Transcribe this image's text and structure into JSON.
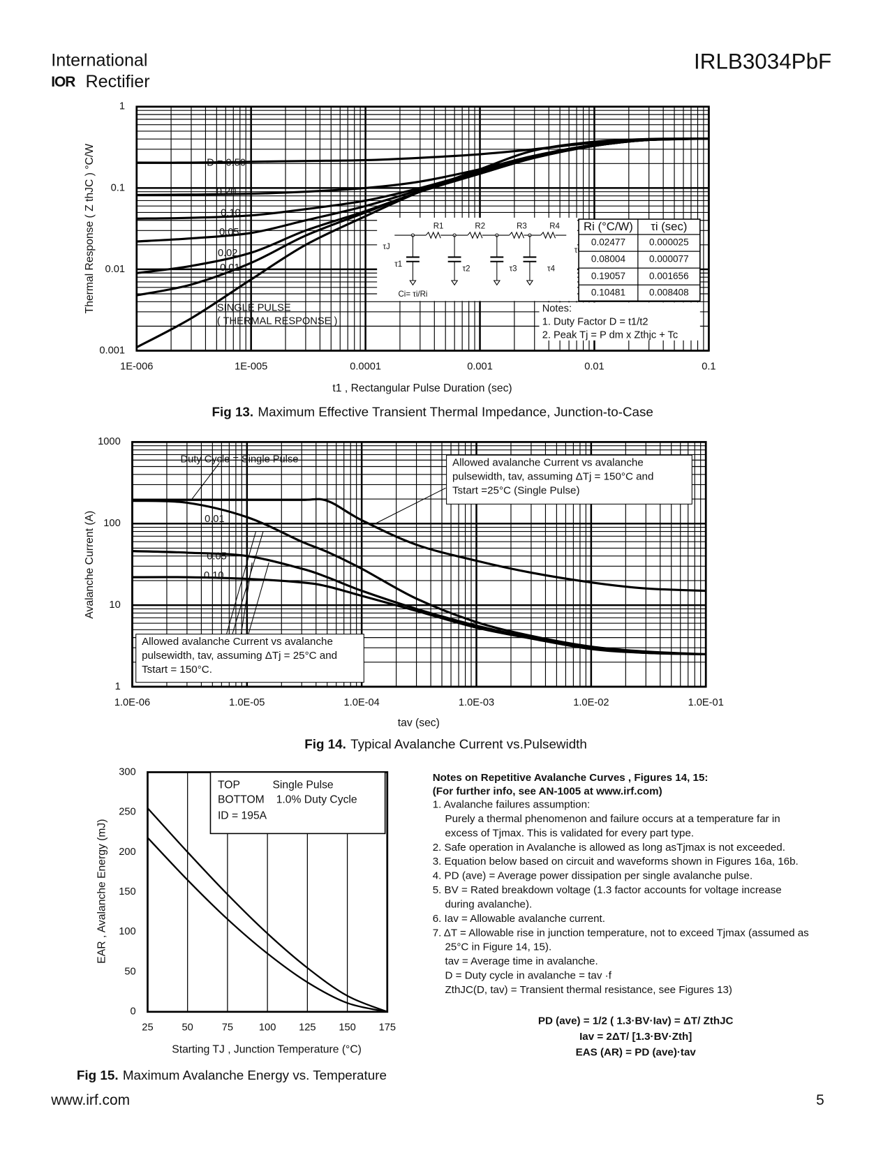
{
  "header": {
    "logo_top": "International",
    "logo_mark": "IOR",
    "logo_bottom": "Rectifier",
    "part": "IRLB3034PbF"
  },
  "chart_data": [
    {
      "type": "line",
      "caption_label": "Fig 13.",
      "caption": "Maximum Effective Transient Thermal Impedance, Junction-to-Case",
      "xlabel": "t1 , Rectangular Pulse Duration (sec)",
      "ylabel": "Thermal Response ( Z thJC ) °C/W",
      "xscale": "log",
      "yscale": "log",
      "grid": true,
      "xlim": [
        1e-06,
        0.1
      ],
      "ylim": [
        0.001,
        1
      ],
      "xticks": [
        {
          "value": 1e-06,
          "label": "1E-006"
        },
        {
          "value": 1e-05,
          "label": "1E-005"
        },
        {
          "value": 0.0001,
          "label": "0.0001"
        },
        {
          "value": 0.001,
          "label": "0.001"
        },
        {
          "value": 0.01,
          "label": "0.01"
        },
        {
          "value": 0.1,
          "label": "0.1"
        }
      ],
      "yticks": [
        0.001,
        0.01,
        0.1,
        1
      ],
      "x": [
        1e-06,
        3e-06,
        1e-05,
        3e-05,
        0.0001,
        0.0003,
        0.001,
        0.003,
        0.01,
        0.03,
        0.1
      ],
      "series": [
        {
          "name": "D = 0.50",
          "color": "#000000",
          "values": [
            0.205,
            0.205,
            0.21,
            0.215,
            0.22,
            0.235,
            0.26,
            0.3,
            0.36,
            0.39,
            0.405
          ]
        },
        {
          "name": "0.20",
          "color": "#000000",
          "values": [
            0.082,
            0.083,
            0.085,
            0.09,
            0.1,
            0.12,
            0.17,
            0.25,
            0.34,
            0.39,
            0.405
          ]
        },
        {
          "name": "0.10",
          "color": "#000000",
          "values": [
            0.042,
            0.043,
            0.046,
            0.055,
            0.07,
            0.1,
            0.16,
            0.24,
            0.34,
            0.39,
            0.405
          ]
        },
        {
          "name": "0.05",
          "color": "#000000",
          "values": [
            0.022,
            0.024,
            0.028,
            0.04,
            0.06,
            0.095,
            0.155,
            0.24,
            0.33,
            0.39,
            0.405
          ]
        },
        {
          "name": "0.02",
          "color": "#000000",
          "values": [
            0.009,
            0.011,
            0.016,
            0.03,
            0.052,
            0.09,
            0.15,
            0.235,
            0.33,
            0.39,
            0.405
          ]
        },
        {
          "name": "0.01",
          "color": "#000000",
          "values": [
            0.0048,
            0.0065,
            0.012,
            0.026,
            0.05,
            0.09,
            0.15,
            0.235,
            0.33,
            0.39,
            0.405
          ]
        },
        {
          "name": "SINGLE PULSE",
          "color": "#000000",
          "values": [
            0.0011,
            0.0025,
            0.0075,
            0.02,
            0.045,
            0.09,
            0.17,
            0.29,
            0.37,
            0.4,
            0.405
          ]
        }
      ],
      "annotations": [
        "( THERMAL RESPONSE )"
      ],
      "circuit_labels": [
        "R1",
        "R2",
        "R3",
        "R4",
        "τJ",
        "τC",
        "τ1",
        "τ2",
        "τ3",
        "τ4",
        "Ci= τi/Ri"
      ],
      "table": {
        "columns": [
          "Ri (°C/W)",
          "τi (sec)"
        ],
        "rows": [
          [
            "0.02477",
            "0.000025"
          ],
          [
            "0.08004",
            "0.000077"
          ],
          [
            "0.19057",
            "0.001656"
          ],
          [
            "0.10481",
            "0.008408"
          ]
        ]
      },
      "notes": [
        "Notes:",
        "1. Duty Factor D = t1/t2",
        "2. Peak Tj = P dm x Zthjc + Tc"
      ]
    },
    {
      "type": "line",
      "caption_label": "Fig 14.",
      "caption": "Typical Avalanche Current vs.Pulsewidth",
      "xlabel": "tav (sec)",
      "ylabel": "Avalanche Current (A)",
      "xscale": "log",
      "yscale": "log",
      "grid": true,
      "xlim": [
        1e-06,
        0.1
      ],
      "ylim": [
        1,
        1000
      ],
      "xticks": [
        {
          "value": 1e-06,
          "label": "1.0E-06"
        },
        {
          "value": 1e-05,
          "label": "1.0E-05"
        },
        {
          "value": 0.0001,
          "label": "1.0E-04"
        },
        {
          "value": 0.001,
          "label": "1.0E-03"
        },
        {
          "value": 0.01,
          "label": "1.0E-02"
        },
        {
          "value": 0.1,
          "label": "1.0E-01"
        }
      ],
      "yticks": [
        1,
        10,
        100,
        1000
      ],
      "x": [
        1e-06,
        3e-06,
        1e-05,
        3e-05,
        5e-05,
        0.0001,
        0.0003,
        0.001,
        0.003,
        0.01,
        0.03,
        0.1
      ],
      "series": [
        {
          "name": "Duty Cycle = Single Pulse",
          "color": "#000000",
          "values": [
            195,
            195,
            195,
            195,
            190,
            110,
            55,
            35,
            25,
            19,
            16,
            15
          ]
        },
        {
          "name": "0.01",
          "color": "#000000",
          "values": [
            190,
            180,
            120,
            60,
            45,
            28,
            12,
            6.2,
            4.2,
            3.1,
            2.7,
            2.5
          ]
        },
        {
          "name": "0.05",
          "color": "#000000",
          "values": [
            46,
            44,
            40,
            28,
            22,
            15,
            9,
            5.6,
            4,
            3,
            2.6,
            2.5
          ]
        },
        {
          "name": "0.10",
          "color": "#000000",
          "values": [
            22,
            22,
            21,
            19,
            17,
            13,
            8.5,
            5.3,
            3.9,
            2.9,
            2.6,
            2.5
          ]
        }
      ],
      "annotations": [
        [
          "Allowed avalanche Current vs avalanche",
          "pulsewidth, tav, assuming ΔTj = 150°C and",
          "Tstart =25°C (Single Pulse)"
        ],
        [
          "Allowed avalanche Current vs avalanche",
          "pulsewidth, tav, assuming ΔTj = 25°C and",
          "Tstart = 150°C."
        ]
      ]
    },
    {
      "type": "line",
      "caption_label": "Fig 15.",
      "caption": "Maximum Avalanche Energy vs. Temperature",
      "xlabel": "Starting TJ , Junction Temperature (°C)",
      "ylabel": "EAR , Avalanche Energy (mJ)",
      "xscale": "linear",
      "yscale": "linear",
      "grid": "x",
      "xlim": [
        25,
        175
      ],
      "ylim": [
        0,
        300
      ],
      "xticks": [
        25,
        50,
        75,
        100,
        125,
        150,
        175
      ],
      "yticks": [
        0,
        50,
        100,
        150,
        200,
        250,
        300
      ],
      "x": [
        25,
        50,
        75,
        100,
        125,
        150,
        175
      ],
      "series": [
        {
          "name": "Single Pulse",
          "color": "#000000",
          "values": [
            255,
            200,
            147,
            98,
            55,
            20,
            0
          ]
        },
        {
          "name": "1.0% Duty Cycle",
          "color": "#000000",
          "values": [
            218,
            165,
            116,
            73,
            37,
            11,
            0
          ]
        }
      ],
      "legend": {
        "top": "TOP",
        "bottom": "BOTTOM",
        "note": "ID = 195A"
      }
    }
  ],
  "notes": {
    "title": [
      "Notes on Repetitive Avalanche Curves , Figures 14, 15:",
      "(For further info, see AN-1005 at www.irf.com)"
    ],
    "items": [
      [
        "1. Avalanche failures assumption:",
        "Purely a thermal phenomenon and failure occurs at a temperature far in",
        "excess of Tjmax. This is validated for every part type."
      ],
      [
        "2. Safe operation in Avalanche is allowed as long asTjmax is not exceeded."
      ],
      [
        "3. Equation below based on circuit and waveforms shown in Figures 16a, 16b."
      ],
      [
        "4. PD (ave) = Average power dissipation per single avalanche pulse."
      ],
      [
        "5. BV = Rated breakdown voltage (1.3 factor accounts for voltage increase",
        "during avalanche)."
      ],
      [
        "6. Iav = Allowable avalanche current."
      ],
      [
        "7. ΔT = Allowable rise in junction temperature, not to exceed Tjmax (assumed as",
        "25°C in Figure 14, 15).",
        "tav = Average time in avalanche.",
        "D = Duty cycle in avalanche =  tav ·f",
        "ZthJC(D, tav) = Transient thermal resistance, see Figures 13)"
      ]
    ],
    "equations": [
      "PD (ave) = 1/2 ( 1.3·BV·Iav) = ΔT/ ZthJC",
      "Iav = 2ΔT/ [1.3·BV·Zth]",
      "EAS (AR) = PD (ave)·tav"
    ]
  },
  "footer": {
    "url": "www.irf.com",
    "page": "5"
  }
}
